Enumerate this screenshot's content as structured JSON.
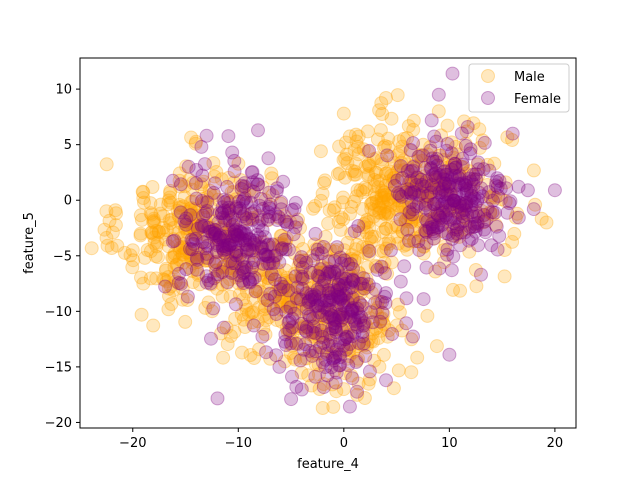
{
  "chart_data": {
    "type": "scatter",
    "xlabel": "feature_4",
    "ylabel": "feature_5",
    "xlim": [
      -25,
      22
    ],
    "ylim": [
      -20.5,
      12.8
    ],
    "xticks": [
      -20,
      -10,
      0,
      10,
      20
    ],
    "yticks": [
      -20,
      -15,
      -10,
      -5,
      0,
      5,
      10
    ],
    "grid": false,
    "legend_position": "top-right",
    "marker_alpha": 0.25,
    "series": [
      {
        "name": "Male",
        "color": "#ffa500",
        "clusters": [
          {
            "cx": -14,
            "cy": -3,
            "sx": 3.5,
            "sy": 3.2,
            "n": 300
          },
          {
            "cx": -6,
            "cy": -8,
            "sx": 3.5,
            "sy": 3.5,
            "n": 180
          },
          {
            "cx": 0,
            "cy": -10,
            "sx": 3.0,
            "sy": 3.5,
            "n": 220
          },
          {
            "cx": 4,
            "cy": 1,
            "sx": 3.0,
            "sy": 3.0,
            "n": 200
          },
          {
            "cx": 9,
            "cy": 0,
            "sx": 3.5,
            "sy": 3.0,
            "n": 200
          }
        ],
        "points": [
          {
            "x": -22.5,
            "y": -1
          },
          {
            "x": -22,
            "y": -4.3
          },
          {
            "x": -20,
            "y": -4.5
          },
          {
            "x": -19,
            "y": -7.5
          },
          {
            "x": -19,
            "y": 0.2
          },
          {
            "x": -2,
            "y": -18.7
          },
          {
            "x": -1,
            "y": -18.6
          },
          {
            "x": 0,
            "y": -17
          },
          {
            "x": 2,
            "y": -17.8
          },
          {
            "x": 0,
            "y": 7.8
          },
          {
            "x": 4,
            "y": 9.2
          },
          {
            "x": 9,
            "y": 8
          }
        ]
      },
      {
        "name": "Female",
        "color": "#800080",
        "clusters": [
          {
            "cx": -10,
            "cy": -3,
            "sx": 2.8,
            "sy": 2.8,
            "n": 260
          },
          {
            "cx": -1,
            "cy": -10,
            "sx": 2.8,
            "sy": 2.8,
            "n": 260
          },
          {
            "cx": 10,
            "cy": 0,
            "sx": 2.8,
            "sy": 2.8,
            "n": 260
          }
        ],
        "points": [
          {
            "x": 10.3,
            "y": 11.4
          },
          {
            "x": 9,
            "y": 9.5
          },
          {
            "x": 20,
            "y": 0.9
          },
          {
            "x": 18,
            "y": -0.8
          },
          {
            "x": -13,
            "y": 5.8
          },
          {
            "x": -13.5,
            "y": 4.8
          },
          {
            "x": -5,
            "y": -17.9
          },
          {
            "x": -4.5,
            "y": -16.8
          },
          {
            "x": 4,
            "y": -16.2
          },
          {
            "x": 10,
            "y": -13.9
          },
          {
            "x": 13,
            "y": -6.7
          },
          {
            "x": 16,
            "y": 6
          }
        ]
      }
    ]
  }
}
